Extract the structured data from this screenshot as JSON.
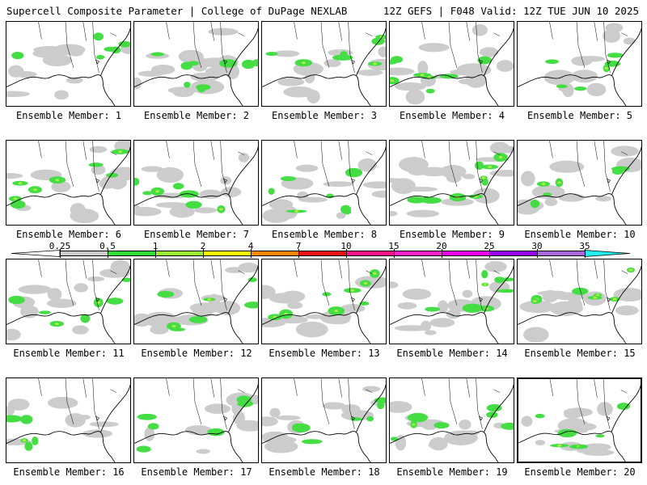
{
  "header": {
    "left": "Supercell Composite Parameter | College of DuPage NEXLAB",
    "right": "12Z GEFS | F048 Valid: 12Z TUE JUN 10 2025"
  },
  "caption_prefix": "Ensemble Member:",
  "members": [
    {
      "number": "1",
      "density": 0.35
    },
    {
      "number": "2",
      "density": 0.65
    },
    {
      "number": "3",
      "density": 0.45
    },
    {
      "number": "4",
      "density": 0.55
    },
    {
      "number": "5",
      "density": 0.3
    },
    {
      "number": "6",
      "density": 0.5
    },
    {
      "number": "7",
      "density": 0.4
    },
    {
      "number": "8",
      "density": 0.45
    },
    {
      "number": "9",
      "density": 0.75
    },
    {
      "number": "10",
      "density": 0.3
    },
    {
      "number": "11",
      "density": 0.45
    },
    {
      "number": "12",
      "density": 0.45
    },
    {
      "number": "13",
      "density": 0.6
    },
    {
      "number": "14",
      "density": 0.55
    },
    {
      "number": "15",
      "density": 0.4
    },
    {
      "number": "16",
      "density": 0.2
    },
    {
      "number": "17",
      "density": 0.3
    },
    {
      "number": "18",
      "density": 0.4
    },
    {
      "number": "19",
      "density": 0.4
    },
    {
      "number": "20",
      "density": 0.45
    }
  ],
  "selected_member": "20",
  "colorbar": {
    "tick_labels": [
      "0.25",
      "0.5",
      "1",
      "2",
      "4",
      "7",
      "10",
      "15",
      "20",
      "25",
      "30",
      "35"
    ],
    "colors": [
      "#cccccc",
      "#33dd33",
      "#99ee33",
      "#ffff00",
      "#ff8800",
      "#ee1111",
      "#ff1188",
      "#ff22cc",
      "#ee00ee",
      "#9900ee",
      "#aa66dd",
      "#22eeee"
    ]
  },
  "map_colors": {
    "light": "#cccccc",
    "medium": "#44dd44",
    "strong": "#aaee44",
    "coast": "#000000"
  }
}
